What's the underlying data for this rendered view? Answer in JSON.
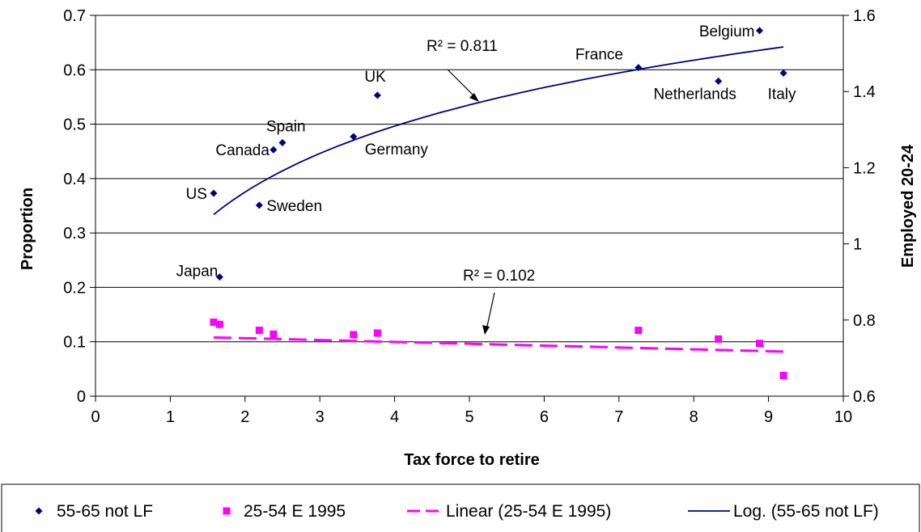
{
  "colors": {
    "series_a": "#00007f",
    "series_b": "#ff00ff",
    "trend_a": "#00007f",
    "trend_b": "#ff00ff",
    "grid": "#000000"
  },
  "chart_data": {
    "type": "scatter",
    "xlabel": "Tax force to retire",
    "ylabel": "Proportion",
    "y2label": "Employed 20-24",
    "xlim": [
      0,
      10
    ],
    "ylim": [
      0,
      0.7
    ],
    "y2lim": [
      0.6,
      1.6
    ],
    "xticks": [
      "0",
      "1",
      "2",
      "3",
      "4",
      "5",
      "6",
      "7",
      "8",
      "9",
      "10"
    ],
    "yticks": [
      "0",
      "0.1",
      "0.2",
      "0.3",
      "0.4",
      "0.5",
      "0.6",
      "0.7"
    ],
    "y2ticks": [
      "0.6",
      "0.8",
      "1",
      "1.2",
      "1.4",
      "1.6"
    ],
    "grid": "horizontal",
    "legend_position": "bottom",
    "series": [
      {
        "name": "55-65 not LF",
        "axis": "left",
        "marker": "diamond",
        "points": [
          {
            "label": "US",
            "x": 1.58,
            "y": 0.373
          },
          {
            "label": "Japan",
            "x": 1.66,
            "y": 0.219
          },
          {
            "label": "Sweden",
            "x": 2.19,
            "y": 0.351
          },
          {
            "label": "Canada",
            "x": 2.38,
            "y": 0.453
          },
          {
            "label": "Spain",
            "x": 2.5,
            "y": 0.466
          },
          {
            "label": "Germany",
            "x": 3.45,
            "y": 0.477
          },
          {
            "label": "UK",
            "x": 3.77,
            "y": 0.553
          },
          {
            "label": "France",
            "x": 7.26,
            "y": 0.604
          },
          {
            "label": "Netherlands",
            "x": 8.33,
            "y": 0.579
          },
          {
            "label": "Belgium",
            "x": 8.88,
            "y": 0.672
          },
          {
            "label": "Italy",
            "x": 9.2,
            "y": 0.594
          }
        ]
      },
      {
        "name": "25-54 E 1995",
        "axis": "left",
        "marker": "square",
        "points": [
          {
            "x": 1.58,
            "y": 0.136
          },
          {
            "x": 1.66,
            "y": 0.132
          },
          {
            "x": 2.19,
            "y": 0.121
          },
          {
            "x": 2.38,
            "y": 0.114
          },
          {
            "x": 3.45,
            "y": 0.113
          },
          {
            "x": 3.77,
            "y": 0.116
          },
          {
            "x": 7.26,
            "y": 0.121
          },
          {
            "x": 8.33,
            "y": 0.105
          },
          {
            "x": 8.88,
            "y": 0.097
          },
          {
            "x": 9.2,
            "y": 0.038
          }
        ]
      }
    ],
    "trendlines": [
      {
        "name": "Linear (25-54 E 1995)",
        "type": "linear",
        "style": "dashed",
        "x_range": [
          1.58,
          9.2
        ],
        "y_range": [
          0.108,
          0.082
        ],
        "r2_label": "R² = 0.102"
      },
      {
        "name": "Log. (55-65 not LF)",
        "type": "log",
        "style": "solid",
        "x_range": [
          1.58,
          9.2
        ],
        "y_at_start": 0.334,
        "y_at_end": 0.642,
        "r2_label": "R² = 0.811"
      }
    ],
    "legend": [
      {
        "label": "55-65 not LF",
        "symbol": "diamond"
      },
      {
        "label": "25-54 E 1995",
        "symbol": "square"
      },
      {
        "label": "Linear (25-54 E 1995)",
        "symbol": "dash"
      },
      {
        "label": "Log. (55-65 not LF)",
        "symbol": "line"
      }
    ]
  }
}
